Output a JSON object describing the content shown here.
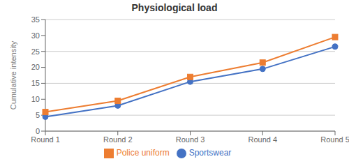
{
  "chart_data": {
    "type": "line",
    "title": "Physiological load",
    "ylabel": "Cumulative intensity",
    "categories": [
      "Round 1",
      "Round 2",
      "Round 3",
      "Round 4",
      "Round 5"
    ],
    "series": [
      {
        "name": "Sportswear",
        "color": "#4472C4",
        "marker": "circle",
        "values": [
          4.5,
          8.0,
          15.5,
          19.5,
          26.5
        ]
      },
      {
        "name": "Police uniform",
        "color": "#ED7D31",
        "marker": "square",
        "values": [
          6.0,
          9.5,
          17.0,
          21.5,
          29.5
        ]
      }
    ],
    "ylim": [
      0,
      35
    ],
    "yticks": [
      0,
      5,
      10,
      15,
      20,
      25,
      30,
      35
    ],
    "grid": true,
    "legend": "bottom"
  }
}
